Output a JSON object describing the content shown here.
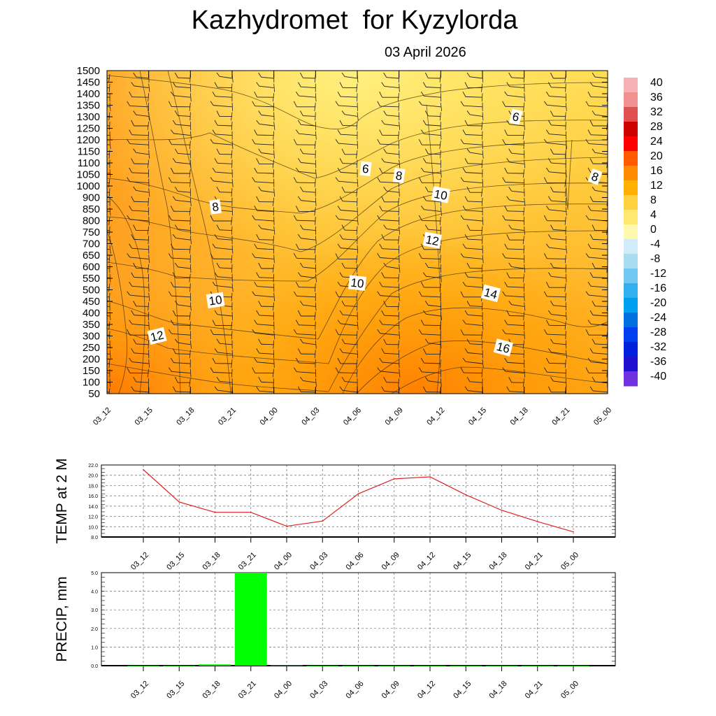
{
  "title": "Kazhydromet  for Kyzylorda",
  "subtitle": "03 April 2026",
  "chart_data": [
    {
      "type": "heatmap",
      "name": "temperature_cross_section",
      "x_tick_labels": [
        "03_12",
        "03_15",
        "03_18",
        "03_21",
        "04_00",
        "04_03",
        "04_06",
        "04_09",
        "04_12",
        "04_15",
        "04_18",
        "04_21",
        "05_00"
      ],
      "y_tick_labels": [
        1500,
        1450,
        1400,
        1350,
        1300,
        1250,
        1200,
        1150,
        1100,
        1050,
        1000,
        900,
        850,
        800,
        750,
        700,
        650,
        600,
        550,
        500,
        450,
        400,
        350,
        300,
        250,
        200,
        150,
        100,
        50
      ],
      "colorbar_labels": [
        "40",
        "36",
        "32",
        "28",
        "24",
        "20",
        "16",
        "12",
        "8",
        "4",
        "0",
        "-4",
        "-8",
        "-12",
        "-16",
        "-20",
        "-24",
        "-28",
        "-32",
        "-36",
        "-40"
      ],
      "colorbar_colors": [
        "#f5b1b6",
        "#f0908f",
        "#e05050",
        "#d00000",
        "#ff0000",
        "#ff5a00",
        "#ff8c00",
        "#ffb000",
        "#ffd040",
        "#ffe870",
        "#fff9b0",
        "#d0ecf8",
        "#a8dcf0",
        "#70c8f0",
        "#30b0f0",
        "#00a0f0",
        "#0070e0",
        "#0040f0",
        "#0020e0",
        "#2010d0",
        "#7030e0"
      ],
      "contour_labels": [
        {
          "text": "6",
          "x": 6.6,
          "h": 1075
        },
        {
          "text": "6",
          "x": 14.0,
          "h": 1300
        },
        {
          "text": "8",
          "x": 8.2,
          "h": 1045
        },
        {
          "text": "8",
          "x": 20.4,
          "h": 1040
        },
        {
          "text": "8",
          "x": -8.0,
          "h": 860
        },
        {
          "text": "10",
          "x": 11.0,
          "h": 925
        },
        {
          "text": "10",
          "x": 6.3,
          "h": 530
        },
        {
          "text": "10",
          "x": -8.3,
          "h": 455
        },
        {
          "text": "12",
          "x": 10.6,
          "h": 715
        },
        {
          "text": "12",
          "x": -14.3,
          "h": 300
        },
        {
          "text": "14",
          "x": 14.6,
          "h": 485
        },
        {
          "text": "16",
          "x": 14.9,
          "h": 250
        }
      ]
    },
    {
      "type": "line",
      "name": "temp_2m",
      "ylabel": "TEMP at 2 M",
      "categories": [
        "03_12",
        "03_15",
        "03_18",
        "03_21",
        "04_00",
        "04_03",
        "04_06",
        "04_09",
        "04_12",
        "04_15",
        "04_18",
        "04_21",
        "05_00"
      ],
      "values": [
        21.1,
        14.8,
        12.8,
        12.8,
        10.1,
        11.1,
        16.4,
        19.3,
        19.7,
        16.2,
        13.2,
        11.0,
        9.0
      ],
      "ylim": [
        8.0,
        22.0
      ],
      "y_tick_labels": [
        "22.0",
        "20.0",
        "18.0",
        "16.0",
        "14.0",
        "12.0",
        "10.0",
        "8.0"
      ],
      "color": "#e02020"
    },
    {
      "type": "bar",
      "name": "precip",
      "ylabel": "PRECIP, mm",
      "categories": [
        "03_12",
        "03_15",
        "03_18",
        "03_21",
        "04_00",
        "04_03",
        "04_06",
        "04_09",
        "04_12",
        "04_15",
        "04_18",
        "04_21",
        "05_00"
      ],
      "values": [
        0.0,
        0.0,
        0.07,
        5.0,
        0.02,
        0.0,
        0.0,
        0.0,
        0.0,
        0.0,
        0.0,
        0.0,
        0.0
      ],
      "ylim": [
        0.0,
        5.0
      ],
      "y_tick_labels": [
        "5.0",
        "4.0",
        "3.0",
        "2.0",
        "1.0",
        "0.0"
      ],
      "color": "#00ff00"
    }
  ]
}
